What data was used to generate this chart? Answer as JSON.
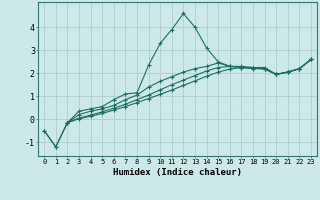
{
  "xlabel": "Humidex (Indice chaleur)",
  "ylabel": "",
  "background_color": "#cde8e8",
  "grid_color": "#b0cccc",
  "line_color": "#1a7060",
  "xlim": [
    -0.5,
    23.5
  ],
  "ylim": [
    -1.6,
    5.1
  ],
  "xticks": [
    0,
    1,
    2,
    3,
    4,
    5,
    6,
    7,
    8,
    9,
    10,
    11,
    12,
    13,
    14,
    15,
    16,
    17,
    18,
    19,
    20,
    21,
    22,
    23
  ],
  "yticks": [
    -1,
    0,
    1,
    2,
    3,
    4
  ],
  "series": [
    {
      "x": [
        0,
        1,
        2,
        3,
        4,
        5,
        6,
        7,
        8,
        9,
        10,
        11,
        12,
        13,
        14,
        15,
        16,
        17,
        18,
        19,
        20,
        21,
        22,
        23
      ],
      "y": [
        -0.5,
        -1.2,
        -0.15,
        0.35,
        0.45,
        0.55,
        0.85,
        1.1,
        1.15,
        2.35,
        3.3,
        3.9,
        4.6,
        4.0,
        3.1,
        2.5,
        2.3,
        2.25,
        2.25,
        2.25,
        1.95,
        2.05,
        2.2,
        2.6
      ]
    },
    {
      "x": [
        0,
        1,
        2,
        3,
        4,
        5,
        6,
        7,
        8,
        9,
        10,
        11,
        12,
        13,
        14,
        15,
        16,
        17,
        18,
        19,
        20,
        21,
        22,
        23
      ],
      "y": [
        -0.5,
        -1.2,
        -0.15,
        0.2,
        0.35,
        0.45,
        0.6,
        0.85,
        1.05,
        1.4,
        1.65,
        1.85,
        2.05,
        2.2,
        2.3,
        2.45,
        2.3,
        2.25,
        2.2,
        2.2,
        1.95,
        2.05,
        2.2,
        2.6
      ]
    },
    {
      "x": [
        2,
        3,
        4,
        5,
        6,
        7,
        8,
        9,
        10,
        11,
        12,
        13,
        14,
        15,
        16,
        17,
        18,
        19,
        20,
        21,
        22,
        23
      ],
      "y": [
        -0.15,
        0.05,
        0.18,
        0.32,
        0.48,
        0.65,
        0.85,
        1.05,
        1.28,
        1.5,
        1.7,
        1.9,
        2.1,
        2.25,
        2.3,
        2.3,
        2.25,
        2.2,
        1.95,
        2.05,
        2.2,
        2.6
      ]
    },
    {
      "x": [
        2,
        3,
        4,
        5,
        6,
        7,
        8,
        9,
        10,
        11,
        12,
        13,
        14,
        15,
        16,
        17,
        18,
        19,
        20,
        21,
        22,
        23
      ],
      "y": [
        -0.15,
        0.02,
        0.13,
        0.25,
        0.4,
        0.55,
        0.72,
        0.9,
        1.08,
        1.27,
        1.47,
        1.67,
        1.87,
        2.05,
        2.18,
        2.25,
        2.22,
        2.18,
        1.95,
        2.05,
        2.2,
        2.6
      ]
    }
  ]
}
